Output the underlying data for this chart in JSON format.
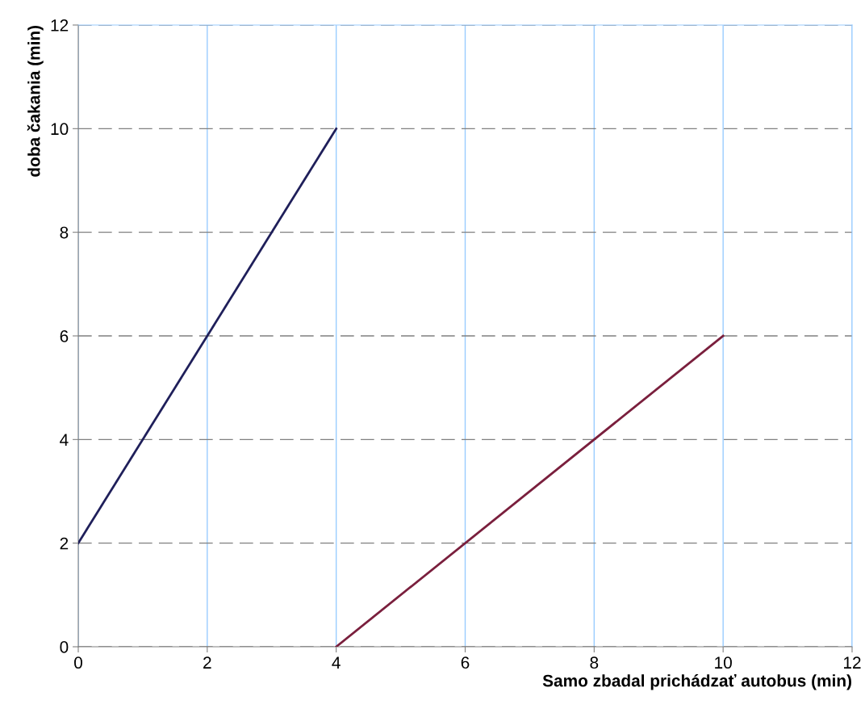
{
  "chart_data": {
    "type": "line",
    "xlabel": "Samo zbadal prichádzať autobus (min)",
    "ylabel": "doba čakania (min)",
    "series": [
      {
        "color": "#1f1f5a",
        "x": [
          0,
          4
        ],
        "values": [
          2,
          10
        ]
      },
      {
        "color": "#7a1f3d",
        "x": [
          4,
          10
        ],
        "values": [
          0,
          6
        ]
      }
    ],
    "xlim": [
      0,
      12
    ],
    "ylim": [
      0,
      12
    ],
    "xticks": [
      0,
      2,
      4,
      6,
      8,
      10,
      12
    ],
    "yticks": [
      0,
      2,
      4,
      6,
      8,
      10,
      12
    ],
    "grid": true,
    "marker": "none",
    "line_style": "solid"
  }
}
